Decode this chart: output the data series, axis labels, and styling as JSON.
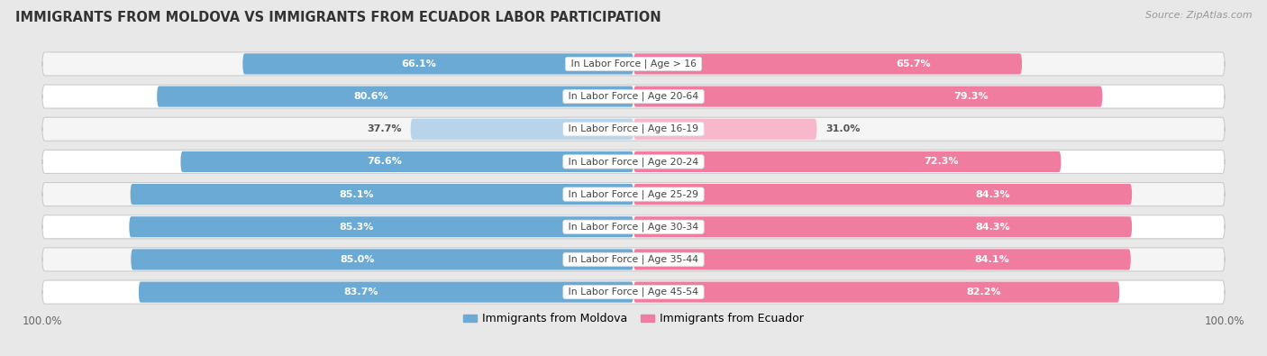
{
  "title": "IMMIGRANTS FROM MOLDOVA VS IMMIGRANTS FROM ECUADOR LABOR PARTICIPATION",
  "source": "Source: ZipAtlas.com",
  "categories": [
    "In Labor Force | Age > 16",
    "In Labor Force | Age 20-64",
    "In Labor Force | Age 16-19",
    "In Labor Force | Age 20-24",
    "In Labor Force | Age 25-29",
    "In Labor Force | Age 30-34",
    "In Labor Force | Age 35-44",
    "In Labor Force | Age 45-54"
  ],
  "moldova_values": [
    66.1,
    80.6,
    37.7,
    76.6,
    85.1,
    85.3,
    85.0,
    83.7
  ],
  "ecuador_values": [
    65.7,
    79.3,
    31.0,
    72.3,
    84.3,
    84.3,
    84.1,
    82.2
  ],
  "moldova_color": "#6aaad4",
  "moldova_color_light": "#b8d4ea",
  "ecuador_color": "#f07ca0",
  "ecuador_color_light": "#f7b8cc",
  "background_color": "#e8e8e8",
  "row_bg_even": "#f5f5f5",
  "row_bg_odd": "#ffffff",
  "label_fontsize": 8.0,
  "cat_fontsize": 7.8,
  "title_fontsize": 10.5,
  "source_fontsize": 8.0,
  "legend_fontsize": 9.0,
  "max_value": 100.0,
  "legend_moldova": "Immigrants from Moldova",
  "legend_ecuador": "Immigrants from Ecuador"
}
